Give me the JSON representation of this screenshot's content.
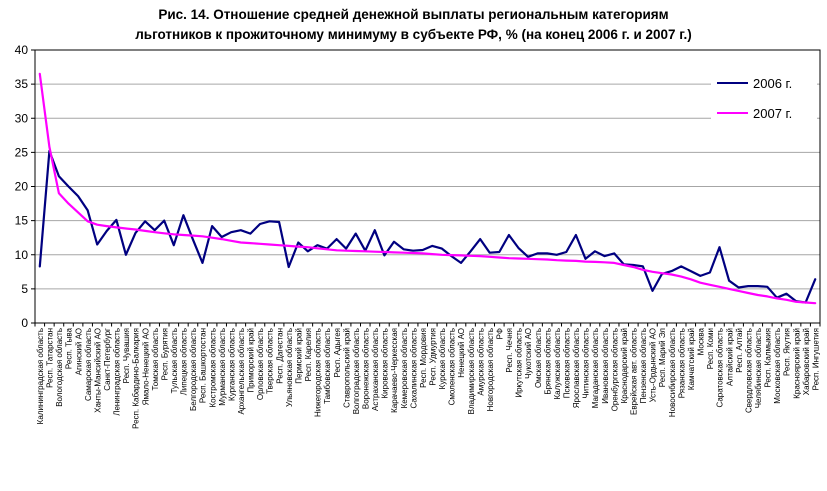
{
  "figure": {
    "title_line1": "Рис. 14. Отношение средней денежной выплаты региональным категориям",
    "title_line2": "льготников к прожиточному минимуму в субъекте РФ, % (на конец 2006 г. и 2007 г.)"
  },
  "chart_data": {
    "type": "line",
    "title": "Рис. 14. Отношение средней денежной выплаты региональным категориям льготников к прожиточному минимуму в субъекте РФ, % (на конец 2006 г. и 2007 г.)",
    "xlabel": "",
    "ylabel": "",
    "ylim": [
      0,
      40
    ],
    "yticks": [
      0,
      5,
      10,
      15,
      20,
      25,
      30,
      35,
      40
    ],
    "grid": true,
    "legend_position": "top-right",
    "colors": {
      "grid": "#a6a6a6",
      "axis": "#000000",
      "text": "#000000",
      "background": "#ffffff"
    },
    "categories": [
      "Калининградская область",
      "Респ. Татарстан",
      "Вологодская область",
      "Респ. Тыва",
      "Агинский АО",
      "Самарская область",
      "Ханты-Мансийский АО",
      "Санкт-Петербург",
      "Ленинградская область",
      "Респ. Чувашия",
      "Респ. Кабардино-Балкария",
      "Ямало-Ненецкий АО",
      "Томская область",
      "Респ. Бурятия",
      "Тульская область",
      "Липецкая область",
      "Белгородская область",
      "Респ. Башкортостан",
      "Костромская область",
      "Мурманская область",
      "Курганская область",
      "Архангельская область",
      "Приморский край",
      "Орловская область",
      "Тверская область",
      "Респ. Дагестан",
      "Ульяновская область",
      "Пермский край",
      "Респ. Карелия",
      "Нижегородская область",
      "Тамбовская область",
      "Респ. Адыгея",
      "Ставропольский край",
      "Волгоградская область",
      "Воронежская область",
      "Астраханская область",
      "Кировская область",
      "Карачаево-Черкесская",
      "Кемеровская область",
      "Сахалинская область",
      "Респ. Мордовия",
      "Респ. Удмуртия",
      "Курская область",
      "Смоленская область",
      "Ненецкий АО",
      "Владимирская область",
      "Амурская область",
      "Новгородская область",
      "РФ",
      "Респ. Чечня",
      "Иркутская область",
      "Чукотский АО",
      "Омская область",
      "Брянская область",
      "Калужская область",
      "Псковская область",
      "Ярославская область",
      "Читинская область",
      "Магаданская область",
      "Ивановская область",
      "Оренбургская область",
      "Краснодарский край",
      "Еврейская авт. область",
      "Пензенская область",
      "Усть-Ордынский АО",
      "Респ. Марий Эл",
      "Новосибирская область",
      "Рязанская область",
      "Камчатский край",
      "Москва",
      "Респ. Коми",
      "Саратовская область",
      "Алтайский край",
      "Респ. Алтай",
      "Свердловская область",
      "Челябинская область",
      "Респ. Калмыкия",
      "Московская область",
      "Респ. Якутия",
      "Красноярский край",
      "Хабаровский край",
      "Респ. Ингушетия"
    ],
    "series": [
      {
        "name": "2006 г.",
        "color": "#000080",
        "values": [
          8.3,
          25.2,
          21.5,
          20.0,
          18.6,
          16.5,
          11.5,
          13.5,
          15.1,
          10.0,
          13.2,
          14.9,
          13.6,
          15.0,
          11.4,
          15.8,
          12.2,
          8.8,
          14.2,
          12.6,
          13.3,
          13.6,
          13.1,
          14.5,
          14.9,
          14.8,
          8.2,
          11.8,
          10.5,
          11.4,
          10.9,
          12.3,
          10.9,
          13.1,
          10.6,
          13.6,
          9.9,
          11.9,
          10.8,
          10.6,
          10.7,
          11.3,
          10.9,
          9.8,
          8.8,
          10.5,
          12.3,
          10.3,
          10.4,
          12.9,
          11.0,
          9.7,
          10.2,
          10.2,
          10.0,
          10.4,
          12.9,
          9.4,
          10.5,
          9.8,
          10.2,
          8.6,
          8.5,
          8.3,
          4.7,
          7.2,
          7.6,
          8.3,
          7.6,
          6.9,
          7.4,
          11.1,
          6.2,
          5.2,
          5.4,
          5.4,
          5.3,
          3.7,
          4.3,
          3.2,
          3.0,
          6.4
        ]
      },
      {
        "name": "2007 г.",
        "color": "#ff00ff",
        "values": [
          36.5,
          25.8,
          19.0,
          17.5,
          16.2,
          14.9,
          14.4,
          14.2,
          14.0,
          13.85,
          13.7,
          13.5,
          13.3,
          13.15,
          13.0,
          12.9,
          12.8,
          12.7,
          12.5,
          12.3,
          12.05,
          11.8,
          11.7,
          11.6,
          11.5,
          11.4,
          11.3,
          11.2,
          11.1,
          10.95,
          10.8,
          10.65,
          10.6,
          10.55,
          10.5,
          10.45,
          10.4,
          10.35,
          10.3,
          10.25,
          10.2,
          10.1,
          10.0,
          9.95,
          9.9,
          9.85,
          9.8,
          9.7,
          9.6,
          9.5,
          9.45,
          9.4,
          9.35,
          9.3,
          9.2,
          9.15,
          9.1,
          9.0,
          8.95,
          8.9,
          8.8,
          8.5,
          8.2,
          7.8,
          7.5,
          7.3,
          7.1,
          6.8,
          6.4,
          5.9,
          5.6,
          5.3,
          5.0,
          4.7,
          4.4,
          4.1,
          3.9,
          3.6,
          3.4,
          3.1,
          3.0,
          2.9
        ]
      }
    ]
  }
}
